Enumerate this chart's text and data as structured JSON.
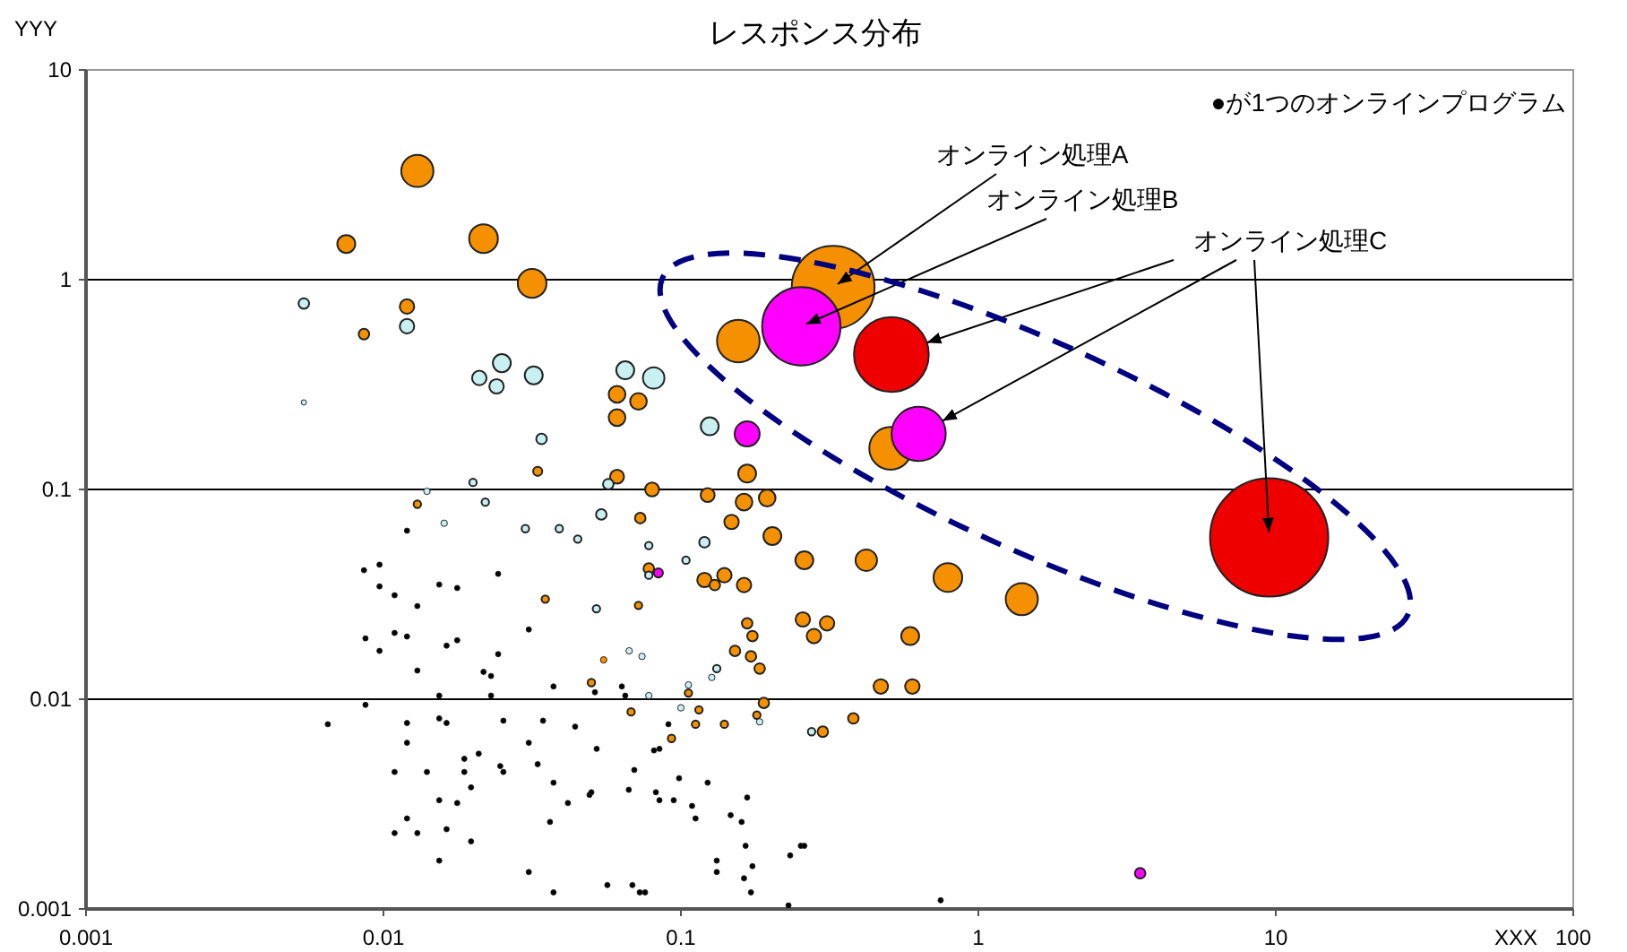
{
  "chart_data": {
    "type": "bubble",
    "title": "レスポンス分布",
    "xlabel": "XXX",
    "ylabel": "YYY",
    "log": "xy",
    "xlim": [
      0.001,
      100
    ],
    "ylim": [
      0.001,
      10
    ],
    "xticks": [
      0.001,
      0.01,
      0.1,
      1,
      10,
      100
    ],
    "yticks": [
      0.001,
      0.01,
      0.1,
      1,
      10
    ],
    "grid": "y",
    "annotations": [
      "●が1つのオンラインプログラム",
      {
        "text": "オンライン処理A",
        "x": 0.325,
        "y": 0.92
      },
      {
        "text": "オンライン処理B",
        "x": 0.254,
        "y": 0.6
      },
      {
        "text": "オンライン処理C",
        "x": 9.5,
        "y": 0.059
      }
    ],
    "series": [
      {
        "color": "#f59000",
        "x": [
          0.013,
          0.0075,
          0.0217,
          0.0316,
          0.012,
          0.0086,
          0.156,
          0.325,
          0.507,
          0.061,
          0.072,
          0.061,
          0.167,
          0.08,
          0.123,
          0.163,
          0.195,
          0.061,
          0.033,
          0.073,
          0.148,
          0.203,
          0.26,
          0.42,
          0.79,
          1.4,
          0.078,
          0.12,
          0.14,
          0.13,
          0.163,
          0.072,
          0.167,
          0.174,
          0.257,
          0.31,
          0.28,
          0.59,
          0.152,
          0.172,
          0.184,
          0.47,
          0.6,
          0.19,
          0.38,
          0.3,
          0.18,
          0.115,
          0.14,
          0.093,
          0.112,
          0.068,
          0.106,
          0.05,
          0.013,
          0.035,
          0.055
        ],
        "values": [
          3.3,
          1.48,
          1.57,
          0.96,
          0.745,
          0.55,
          0.51,
          0.92,
          0.157,
          0.284,
          0.263,
          0.22,
          0.119,
          0.1,
          0.094,
          0.087,
          0.091,
          0.115,
          0.122,
          0.073,
          0.07,
          0.06,
          0.046,
          0.046,
          0.038,
          0.03,
          0.042,
          0.037,
          0.039,
          0.035,
          0.035,
          0.028,
          0.023,
          0.02,
          0.024,
          0.023,
          0.02,
          0.02,
          0.017,
          0.016,
          0.014,
          0.0115,
          0.0115,
          0.0096,
          0.0081,
          0.007,
          0.0084,
          0.0089,
          0.0076,
          0.0065,
          0.0076,
          0.0087,
          0.0107,
          0.012,
          0.085,
          0.03,
          0.0154
        ],
        "sizes": [
          0.074,
          0.023,
          0.059,
          0.059,
          0.015,
          0.008,
          0.13,
          0.49,
          0.13,
          0.02,
          0.02,
          0.02,
          0.023,
          0.014,
          0.014,
          0.02,
          0.02,
          0.014,
          0.006,
          0.008,
          0.015,
          0.023,
          0.023,
          0.033,
          0.059,
          0.074,
          0.008,
          0.015,
          0.015,
          0.008,
          0.015,
          0.004,
          0.008,
          0.008,
          0.015,
          0.015,
          0.015,
          0.023,
          0.008,
          0.008,
          0.008,
          0.015,
          0.015,
          0.008,
          0.008,
          0.008,
          0.004,
          0.004,
          0.004,
          0.004,
          0.004,
          0.004,
          0.004,
          0.004,
          0.004,
          0.004,
          0.003
        ]
      },
      {
        "color": "#c8f0f0",
        "x": [
          0.0054,
          0.012,
          0.021,
          0.025,
          0.024,
          0.032,
          0.034,
          0.0054,
          0.014,
          0.02,
          0.022,
          0.057,
          0.054,
          0.065,
          0.081,
          0.125,
          0.039,
          0.045,
          0.078,
          0.12,
          0.104,
          0.078,
          0.052,
          0.132,
          0.127,
          0.106,
          0.067,
          0.074,
          0.184,
          0.275,
          0.1,
          0.078,
          0.016,
          0.03
        ],
        "values": [
          0.77,
          0.6,
          0.34,
          0.4,
          0.31,
          0.35,
          0.174,
          0.26,
          0.098,
          0.108,
          0.087,
          0.106,
          0.076,
          0.37,
          0.34,
          0.2,
          0.065,
          0.058,
          0.054,
          0.056,
          0.046,
          0.039,
          0.027,
          0.014,
          0.0127,
          0.0117,
          0.017,
          0.016,
          0.0078,
          0.007,
          0.0091,
          0.0104,
          0.069,
          0.065
        ],
        "sizes": [
          0.008,
          0.015,
          0.015,
          0.023,
          0.015,
          0.023,
          0.008,
          0.002,
          0.003,
          0.004,
          0.004,
          0.008,
          0.008,
          0.023,
          0.033,
          0.023,
          0.004,
          0.004,
          0.004,
          0.008,
          0.004,
          0.004,
          0.004,
          0.004,
          0.003,
          0.003,
          0.003,
          0.003,
          0.003,
          0.004,
          0.003,
          0.003,
          0.003,
          0.004
        ]
      },
      {
        "color": "#000000",
        "x": [
          0.0086,
          0.0097,
          0.0097,
          0.0109,
          0.012,
          0.013,
          0.0154,
          0.0177,
          0.0243,
          0.0308,
          0.0087,
          0.0097,
          0.0109,
          0.012,
          0.0163,
          0.0177,
          0.013,
          0.0243,
          0.0217,
          0.023,
          0.0154,
          0.023,
          0.0373,
          0.0514,
          0.0087,
          0.0065,
          0.012,
          0.0154,
          0.0163,
          0.0253,
          0.0344,
          0.0441,
          0.012,
          0.0308,
          0.0209,
          0.0187,
          0.0109,
          0.014,
          0.0187,
          0.0247,
          0.0253,
          0.033,
          0.0521,
          0.0373,
          0.0197,
          0.0154,
          0.0177,
          0.0417,
          0.0493,
          0.012,
          0.0109,
          0.013,
          0.0163,
          0.0363,
          0.0197,
          0.0154,
          0.0308,
          0.0373,
          0.0566,
          0.05,
          0.0668,
          0.0697,
          0.0824,
          0.0847,
          0.0946,
          0.0986,
          0.109,
          0.112,
          0.123,
          0.147,
          0.16,
          0.167,
          0.165,
          0.132,
          0.132,
          0.174,
          0.163,
          0.172,
          0.233,
          0.253,
          0.26,
          0.0687,
          0.0727,
          0.0758,
          0.0847,
          0.0812,
          0.0908,
          0.0633,
          0.065,
          0.23,
          0.747
        ],
        "values": [
          0.0412,
          0.0438,
          0.0345,
          0.0313,
          0.0636,
          0.0278,
          0.0352,
          0.0339,
          0.0396,
          0.0215,
          0.0195,
          0.017,
          0.0207,
          0.0199,
          0.018,
          0.0191,
          0.0137,
          0.0164,
          0.0135,
          0.0129,
          0.0104,
          0.0104,
          0.0115,
          0.0108,
          0.0094,
          0.0076,
          0.0077,
          0.0081,
          0.0077,
          0.0079,
          0.0079,
          0.0074,
          0.0062,
          0.0062,
          0.0055,
          0.0052,
          0.0045,
          0.0045,
          0.0045,
          0.0048,
          0.0045,
          0.0049,
          0.0058,
          0.004,
          0.0038,
          0.0033,
          0.0032,
          0.0032,
          0.0035,
          0.0027,
          0.0023,
          0.0023,
          0.0024,
          0.0026,
          0.0021,
          0.0017,
          0.0015,
          0.0012,
          0.0013,
          0.0036,
          0.0037,
          0.0046,
          0.0036,
          0.0033,
          0.0033,
          0.0042,
          0.0031,
          0.0027,
          0.004,
          0.0028,
          0.0026,
          0.0034,
          0.002,
          0.0017,
          0.0015,
          0.0016,
          0.0014,
          0.0012,
          0.0018,
          0.002,
          0.002,
          0.0013,
          0.0012,
          0.0012,
          0.0058,
          0.0057,
          0.0076,
          0.0115,
          0.0104,
          0.00104,
          0.0011
        ],
        "sizes": [
          0.002,
          0.002,
          0.002,
          0.002,
          0.002,
          0.002,
          0.002,
          0.002,
          0.002,
          0.002,
          0.002,
          0.002,
          0.002,
          0.002,
          0.002,
          0.002,
          0.002,
          0.002,
          0.002,
          0.002,
          0.002,
          0.002,
          0.002,
          0.002,
          0.002,
          0.002,
          0.002,
          0.002,
          0.002,
          0.002,
          0.002,
          0.002,
          0.002,
          0.002,
          0.002,
          0.002,
          0.002,
          0.002,
          0.002,
          0.002,
          0.002,
          0.002,
          0.002,
          0.002,
          0.002,
          0.002,
          0.002,
          0.002,
          0.002,
          0.002,
          0.002,
          0.002,
          0.002,
          0.002,
          0.002,
          0.002,
          0.002,
          0.002,
          0.002,
          0.002,
          0.002,
          0.002,
          0.002,
          0.002,
          0.002,
          0.002,
          0.002,
          0.002,
          0.002,
          0.002,
          0.002,
          0.002,
          0.002,
          0.002,
          0.002,
          0.002,
          0.002,
          0.002,
          0.002,
          0.002,
          0.002,
          0.002,
          0.002,
          0.002,
          0.002,
          0.002,
          0.002,
          0.002,
          0.002,
          0.002,
          0.002
        ]
      },
      {
        "color": "#ff00ff",
        "x": [
          0.254,
          0.63,
          0.167,
          0.084,
          3.5
        ],
        "values": [
          0.6,
          0.184,
          0.184,
          0.04,
          0.00148
        ],
        "sizes": [
          0.44,
          0.21,
          0.045,
          0.006,
          0.008
        ]
      },
      {
        "color": "#ee0000",
        "x": [
          0.51,
          9.5
        ],
        "values": [
          0.44,
          0.059
        ],
        "sizes": [
          0.4,
          1
        ]
      }
    ]
  }
}
